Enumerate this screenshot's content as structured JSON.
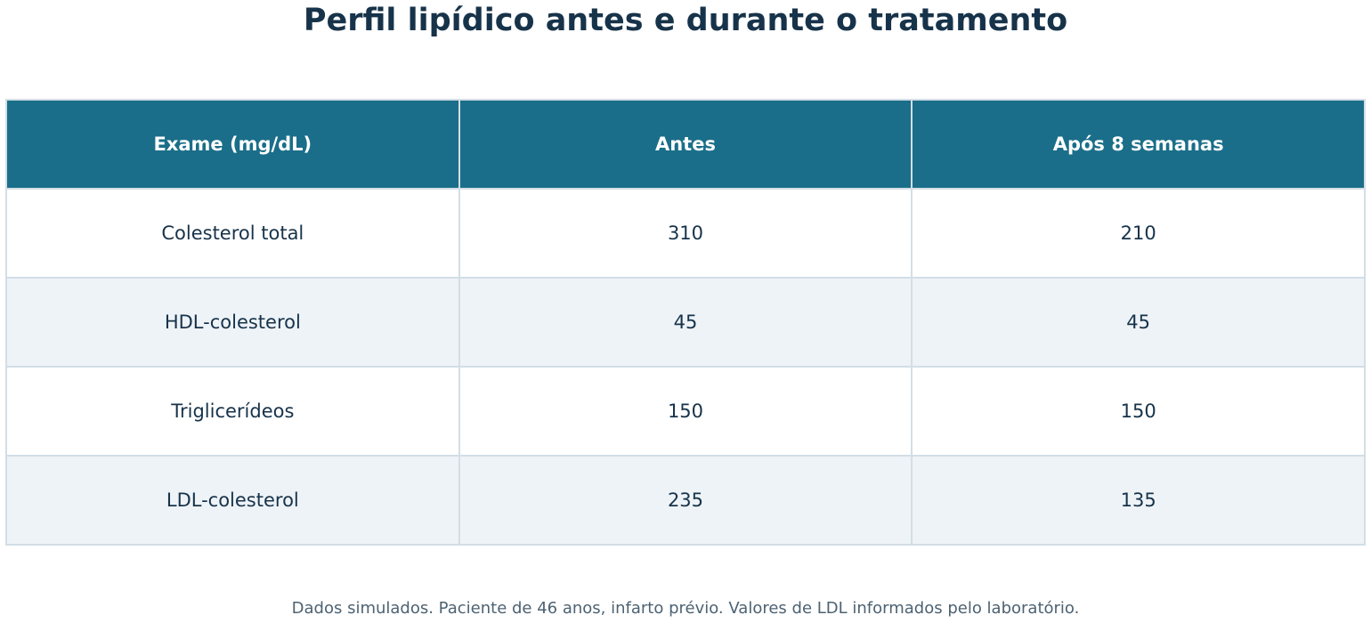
{
  "title": "Perfil lipídico antes e durante o tratamento",
  "note": "Dados simulados. Paciente de 46 anos, infarto prévio. Valores de LDL informados pelo laboratório.",
  "colors": {
    "header_bg": "#1a6e89",
    "header_text": "#ffffff",
    "title_text": "#17334a",
    "row_alt_bg": "#eef3f7",
    "border": "#d3dee6"
  },
  "chart_data": {
    "type": "table",
    "title": "Perfil lipídico antes e durante o tratamento",
    "columns": [
      "Exame (mg/dL)",
      "Antes",
      "Após 8 semanas"
    ],
    "rows": [
      [
        "Colesterol total",
        "310",
        "210"
      ],
      [
        "HDL-colesterol",
        "45",
        "45"
      ],
      [
        "Triglicerídeos",
        "150",
        "150"
      ],
      [
        "LDL-colesterol",
        "235",
        "135"
      ]
    ]
  }
}
